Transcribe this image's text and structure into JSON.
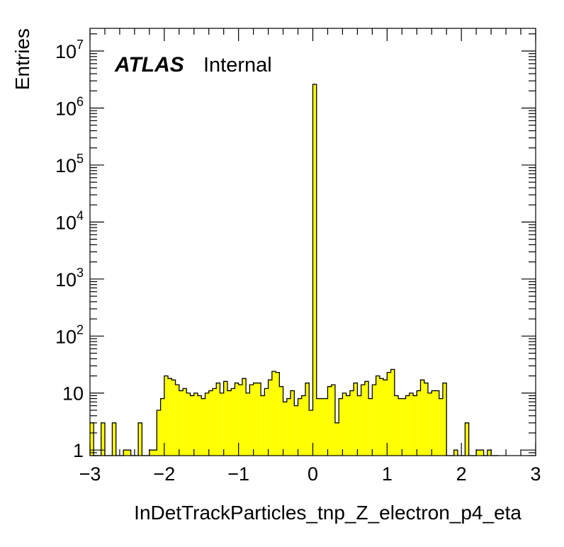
{
  "chart_data": {
    "type": "histogram",
    "title": "",
    "xlabel": "InDetTrackParticles_tnp_Z_electron_p4_eta",
    "ylabel": "Entries",
    "xlim": [
      -3,
      3
    ],
    "ylim": [
      0.8,
      25000000
    ],
    "yscale": "log",
    "bin_width": 0.05,
    "bin_start": -3,
    "x_ticks": [
      -3,
      -2,
      -1,
      0,
      1,
      2,
      3
    ],
    "x_tick_labels": [
      "−3",
      "−2",
      "−1",
      "0",
      "1",
      "2",
      "3"
    ],
    "y_tick_labels": [
      {
        "value": 1,
        "base": "1",
        "exp": ""
      },
      {
        "value": 10,
        "base": "10",
        "exp": ""
      },
      {
        "value": 100,
        "base": "10",
        "exp": "2"
      },
      {
        "value": 1000,
        "base": "10",
        "exp": "3"
      },
      {
        "value": 10000,
        "base": "10",
        "exp": "4"
      },
      {
        "value": 100000,
        "base": "10",
        "exp": "5"
      },
      {
        "value": 1000000,
        "base": "10",
        "exp": "6"
      },
      {
        "value": 10000000,
        "base": "10",
        "exp": "7"
      }
    ],
    "values": [
      3,
      0,
      0,
      3,
      0,
      0,
      3,
      0,
      0,
      1,
      1,
      0,
      0,
      3,
      0,
      0,
      1,
      1,
      5,
      8,
      20,
      18,
      17,
      14,
      11,
      12,
      10,
      9,
      10,
      9,
      8,
      10,
      11,
      12,
      15,
      10,
      16,
      11,
      12,
      15,
      14,
      18,
      10,
      14,
      15,
      15,
      9,
      12,
      17,
      24,
      23,
      13,
      7,
      8,
      11,
      6,
      8,
      9,
      15,
      5,
      2600000,
      8,
      8,
      8,
      13,
      14,
      3,
      8,
      10,
      9,
      11,
      15,
      9,
      14,
      16,
      8,
      14,
      20,
      18,
      17,
      23,
      26,
      9,
      8,
      8,
      9,
      10,
      9,
      11,
      17,
      15,
      10,
      11,
      11,
      8,
      15,
      0,
      0,
      1,
      0,
      0,
      3,
      0,
      0,
      1,
      1,
      0,
      1,
      0,
      0
    ],
    "fill_color": "#ffff00",
    "line_color": "#000000",
    "grid": false,
    "legend": "none"
  },
  "annotation": {
    "experiment": "ATLAS",
    "status": "Internal"
  }
}
